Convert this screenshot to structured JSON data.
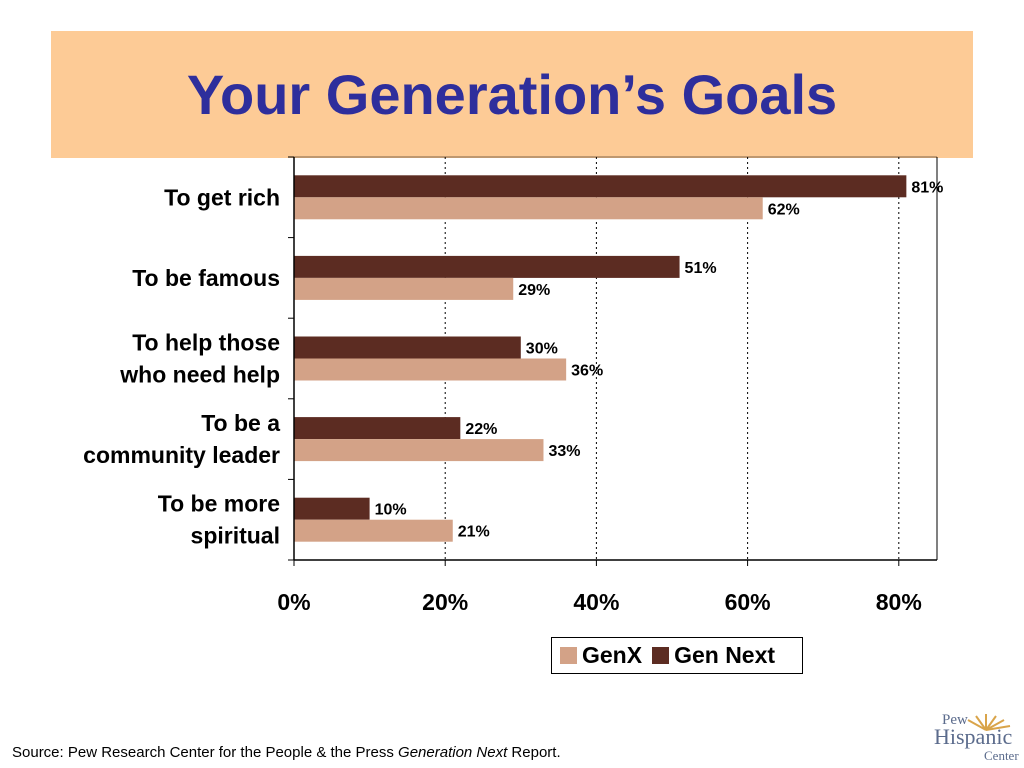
{
  "slide": {
    "title": "Your Generation’s Goals",
    "source_prefix": "Source:  Pew Research Center for the People & the Press ",
    "source_italic": "Generation Next",
    "source_suffix": " Report.",
    "logo": {
      "line1": "Pew",
      "line2": "Hispanic",
      "line3": "Center"
    }
  },
  "chart_data": {
    "type": "bar",
    "orientation": "horizontal",
    "title": "Your Generation’s Goals",
    "categories": [
      [
        "To get rich"
      ],
      [
        "To be famous"
      ],
      [
        "To help those",
        "who need help"
      ],
      [
        "To be a",
        "community leader"
      ],
      [
        "To be more",
        "spiritual"
      ]
    ],
    "series": [
      {
        "name": "Gen Next",
        "color": "#5c2c22",
        "values": [
          81,
          51,
          30,
          22,
          10
        ]
      },
      {
        "name": "GenX",
        "color": "#d3a287",
        "values": [
          62,
          29,
          36,
          33,
          21
        ]
      }
    ],
    "value_suffix": "%",
    "xlim": [
      0,
      85
    ],
    "xticks": [
      0,
      20,
      40,
      60,
      80
    ],
    "xtick_labels": [
      "0%",
      "20%",
      "40%",
      "60%",
      "80%"
    ],
    "grid": "vertical dotted",
    "legend": {
      "placement": "bottom-right",
      "entries": [
        "GenX",
        "Gen Next"
      ],
      "colors": [
        "#d3a287",
        "#5c2c22"
      ]
    }
  }
}
